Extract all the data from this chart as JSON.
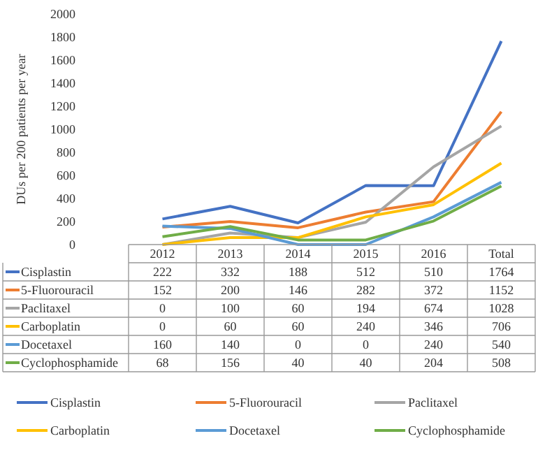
{
  "chart_data": {
    "type": "line",
    "ylabel": "DUs per 200 patients per year",
    "categories": [
      "2012",
      "2013",
      "2014",
      "2015",
      "2016",
      "Total"
    ],
    "series": [
      {
        "name": "Cisplastin",
        "color": "#4472c4",
        "values": [
          222,
          332,
          188,
          512,
          510,
          1764
        ]
      },
      {
        "name": "5-Fluorouracil",
        "color": "#ed7d31",
        "values": [
          152,
          200,
          146,
          282,
          372,
          1152
        ]
      },
      {
        "name": "Paclitaxel",
        "color": "#a5a5a5",
        "values": [
          0,
          100,
          60,
          194,
          674,
          1028
        ]
      },
      {
        "name": "Carboplatin",
        "color": "#ffc000",
        "values": [
          0,
          60,
          60,
          240,
          346,
          706
        ]
      },
      {
        "name": "Docetaxel",
        "color": "#5b9bd5",
        "values": [
          160,
          140,
          0,
          0,
          240,
          540
        ]
      },
      {
        "name": "Cyclophosphamide",
        "color": "#70ad47",
        "values": [
          68,
          156,
          40,
          40,
          204,
          508
        ]
      }
    ],
    "ylim": [
      0,
      2000
    ],
    "yticks": [
      0,
      200,
      400,
      600,
      800,
      1000,
      1200,
      1400,
      1600,
      1800,
      2000
    ],
    "data_labels": true,
    "legend": "bottom",
    "grid": false,
    "marker": "none",
    "line_style": "solid"
  }
}
